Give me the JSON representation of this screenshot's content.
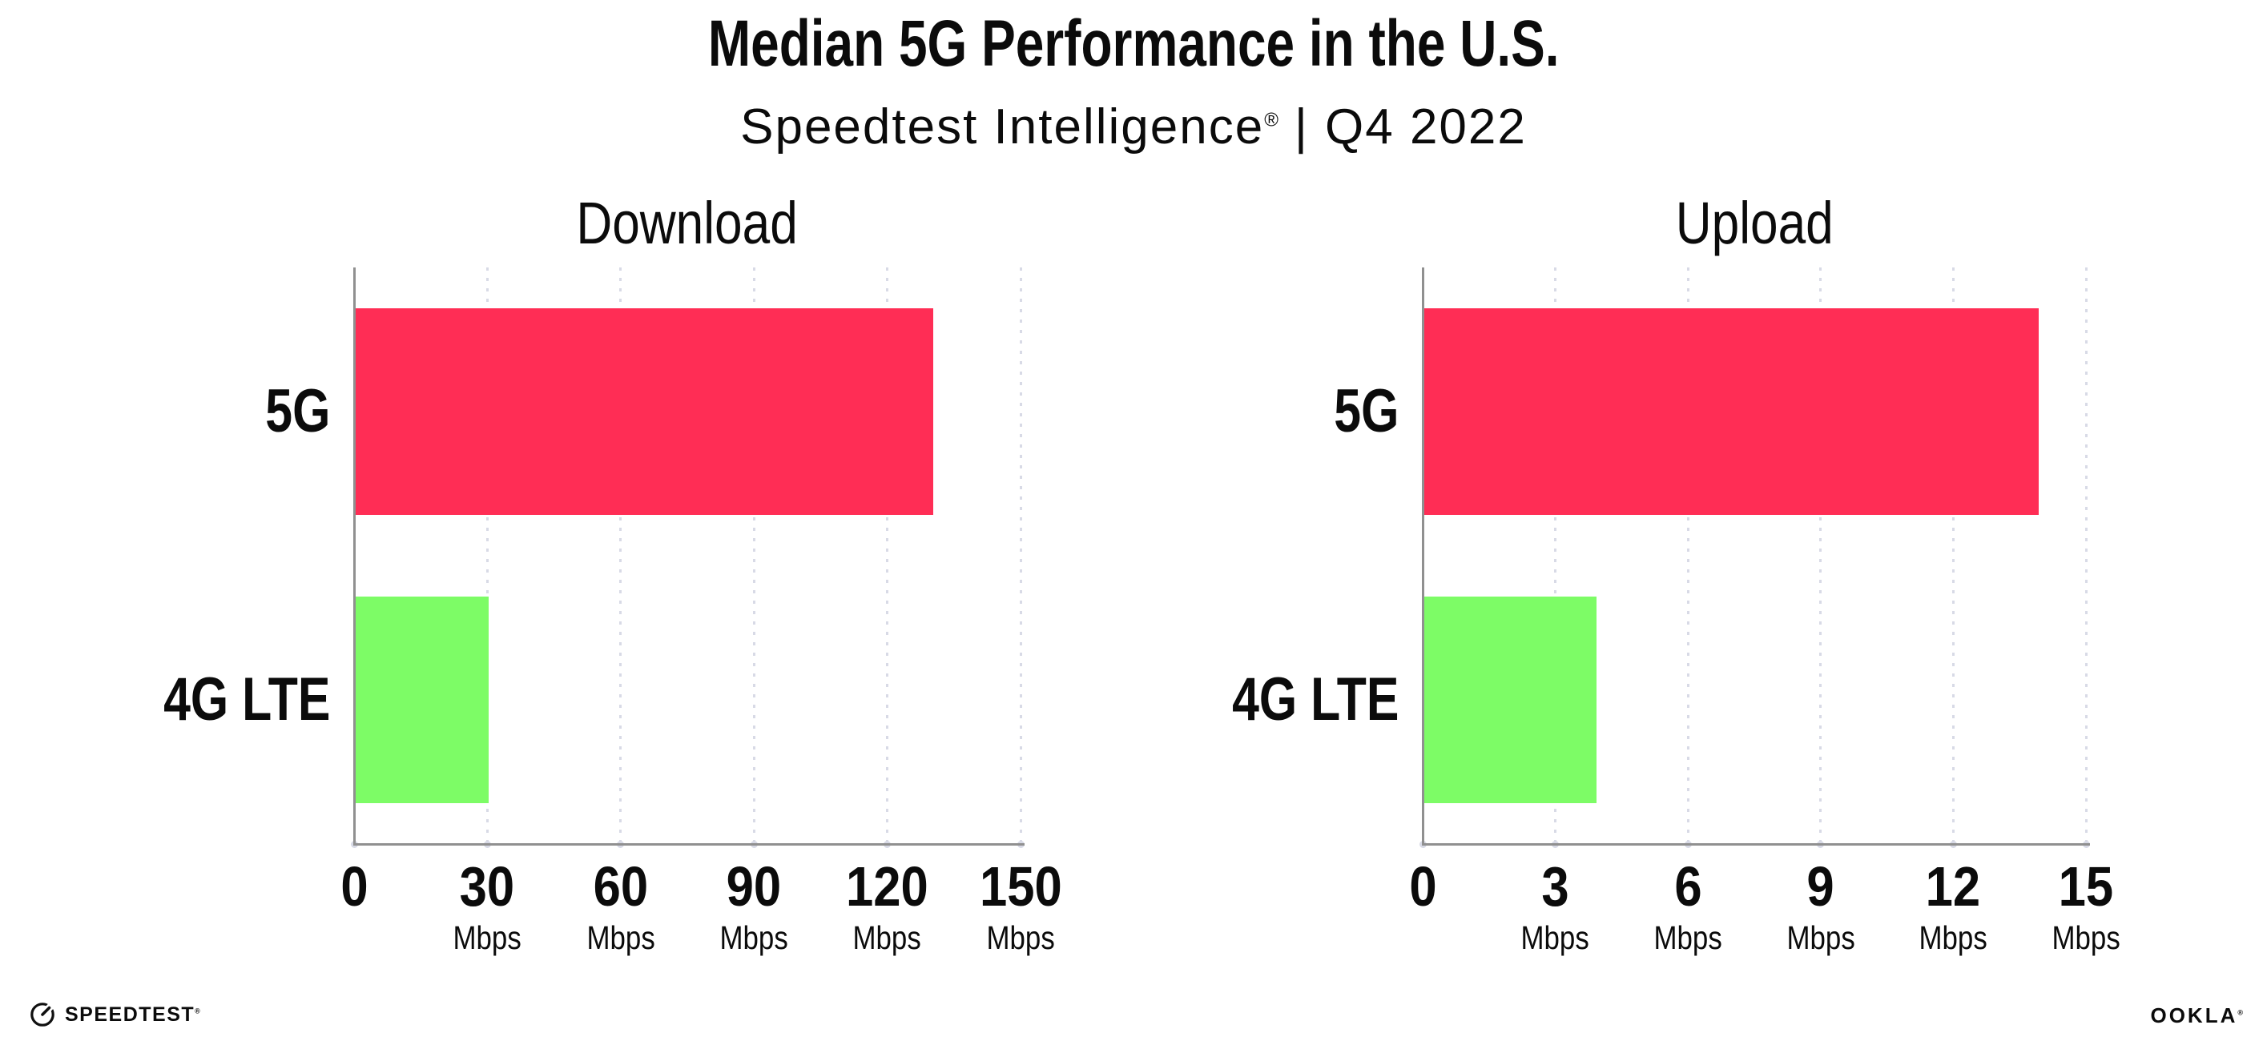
{
  "header": {
    "title": "Median 5G Performance in the U.S.",
    "subtitle": {
      "brand": "Speedtest Intelligence",
      "registered_mark": "®",
      "separator": "|",
      "period": "Q4 2022"
    }
  },
  "chart_data": [
    {
      "type": "bar",
      "orientation": "horizontal",
      "title": "Download",
      "categories": [
        "5G",
        "4G LTE"
      ],
      "values": [
        130,
        30
      ],
      "unit": "Mbps",
      "xlim": [
        0,
        150
      ],
      "xticks": [
        0,
        30,
        60,
        90,
        120,
        150
      ],
      "tick_unit_label": "Mbps",
      "bar_colors": [
        "#ff2d55",
        "#7dfc66"
      ],
      "grid": "vertical-dotted",
      "legend": "none"
    },
    {
      "type": "bar",
      "orientation": "horizontal",
      "title": "Upload",
      "categories": [
        "5G",
        "4G LTE"
      ],
      "values": [
        13.9,
        3.9
      ],
      "unit": "Mbps",
      "xlim": [
        0,
        15
      ],
      "xticks": [
        0,
        3,
        6,
        9,
        12,
        15
      ],
      "tick_unit_label": "Mbps",
      "bar_colors": [
        "#ff2d55",
        "#7dfc66"
      ],
      "grid": "vertical-dotted",
      "legend": "none"
    }
  ],
  "footer": {
    "speedtest": {
      "wordmark": "SPEEDTEST",
      "mark": "®",
      "icon": "speedtest-gauge-icon"
    },
    "ookla": {
      "wordmark": "OOKLA",
      "mark": "®"
    }
  },
  "colors": {
    "bar_5g": "#ff2d55",
    "bar_4g_lte": "#7dfc66",
    "axis": "#909090",
    "grid_dot": "#d8dae6",
    "text": "#0b0b0b"
  }
}
